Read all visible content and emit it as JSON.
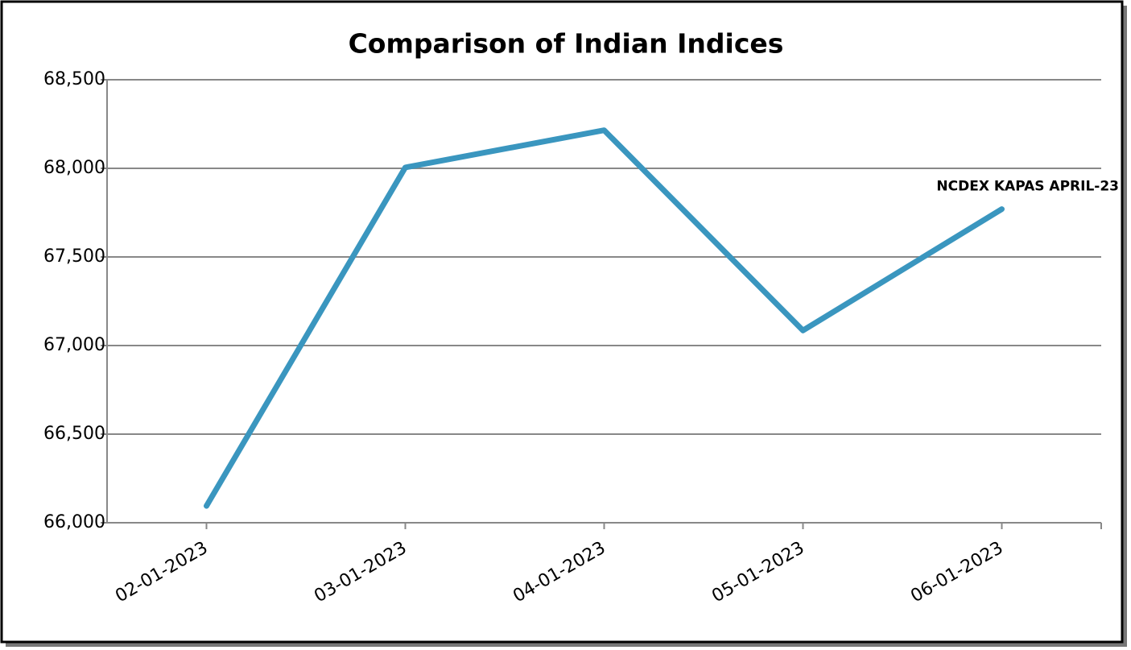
{
  "chart_data": {
    "type": "line",
    "title": "Comparison of Indian Indices",
    "categories": [
      "02-01-2023",
      "03-01-2023",
      "04-01-2023",
      "05-01-2023",
      "06-01-2023"
    ],
    "series": [
      {
        "name": "NCDEX KAPAS APRIL-23",
        "color": "#3a96bf",
        "values": [
          66095,
          68005,
          68215,
          67085,
          67770
        ]
      }
    ],
    "ylim": [
      66000,
      68500
    ],
    "yticks": [
      {
        "value": 66000,
        "label": "66,000"
      },
      {
        "value": 66500,
        "label": "66,500"
      },
      {
        "value": 67000,
        "label": "67,000"
      },
      {
        "value": 67500,
        "label": "67,500"
      },
      {
        "value": 68000,
        "label": "68,000"
      },
      {
        "value": 68500,
        "label": "68,500"
      }
    ],
    "grid": true
  }
}
